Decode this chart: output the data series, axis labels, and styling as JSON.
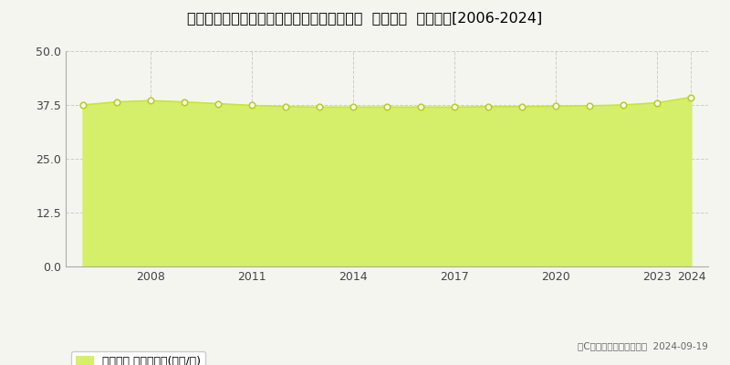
{
  "title": "千葉県佐倉市ユーカリが丘３丁目３番１３外  基準地価  地価推移[2006-2024]",
  "years": [
    2006,
    2007,
    2008,
    2009,
    2010,
    2011,
    2012,
    2013,
    2014,
    2015,
    2016,
    2017,
    2018,
    2019,
    2020,
    2021,
    2022,
    2023,
    2024
  ],
  "values": [
    37.5,
    38.2,
    38.5,
    38.2,
    37.8,
    37.4,
    37.1,
    37.0,
    37.0,
    37.0,
    37.0,
    37.0,
    37.1,
    37.1,
    37.2,
    37.3,
    37.5,
    38.0,
    39.3
  ],
  "ylim": [
    0,
    50
  ],
  "yticks": [
    0,
    12.5,
    25,
    37.5,
    50
  ],
  "xticks": [
    2008,
    2011,
    2014,
    2017,
    2020,
    2023,
    2024
  ],
  "line_color": "#c8e632",
  "fill_color": "#d6ef6a",
  "marker_facecolor": "#ffffff",
  "marker_edge_color": "#b8d020",
  "grid_color": "#cccccc",
  "bg_color": "#f5f5f0",
  "plot_bg_color": "#f5f5f0",
  "legend_label": "基準地価 平均坪単価(万円/坪)",
  "copyright_text": "（C）土地価格ドットコム  2024-09-19",
  "title_fontsize": 11.5,
  "axis_fontsize": 9,
  "legend_fontsize": 9
}
